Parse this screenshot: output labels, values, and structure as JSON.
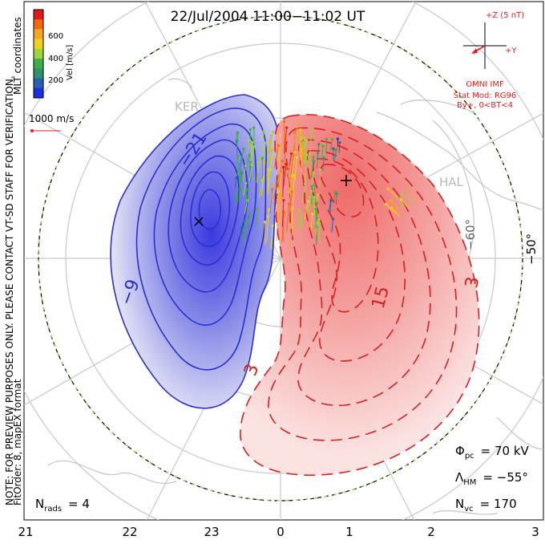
{
  "title": "22/Jul/2004 11:00−11:02 UT",
  "side_note": "NOTE: FOR PREVIEW PURPOSES ONLY. PLEASE CONTACT VT-SD STAFF FOR VERIFICATION.",
  "fit_note": "FitOrder: 8,  mapEX format",
  "coords_label": "MLT coordinates",
  "color_scale": {
    "label": "Vel [m/s]",
    "ticks": [
      "600",
      "400",
      "200"
    ],
    "colors": [
      "#e21a1a",
      "#f26a12",
      "#f5a623",
      "#f0d21e",
      "#9ed43c",
      "#3fae4a",
      "#2f8f6f",
      "#2a5fb0",
      "#1a2fe0"
    ]
  },
  "velocity_reference": "1000 m/s",
  "imf": {
    "z_label": "+Z (5 nT)",
    "y_label": "+Y",
    "source": "OMNI IMF",
    "stat_mod": "Stat Mod: RG96",
    "condition": "By+, 0<BT<4"
  },
  "stats": {
    "phi_pc_symbol": "Φ",
    "phi_pc_sub": "pc",
    "phi_pc_value": "= 70 kV",
    "lambda_hm_symbol": "Λ",
    "lambda_hm_sub": "HM",
    "lambda_hm_value": "= −55°",
    "n_vc_symbol": "N",
    "n_vc_sub": "vc",
    "n_vc_value": "= 170",
    "n_rads_symbol": "N",
    "n_rads_sub": "rads",
    "n_rads_value": "= 4"
  },
  "latitude_labels": [
    "−50°",
    "−60°"
  ],
  "station_labels": [
    "KER",
    "HAL"
  ],
  "contour_labels": [
    "−21",
    "−9",
    "15",
    "3",
    "3"
  ],
  "mlt_axis": {
    "ticks": [
      "21",
      "22",
      "23",
      "0",
      "1",
      "2",
      "3"
    ]
  },
  "palette": {
    "negative_cell": "#2b2fd0",
    "positive_cell": "#e53c3c",
    "boundary_dash": "#8ad046",
    "grid": "#c8c8c8",
    "imf_red": "#e02020"
  }
}
